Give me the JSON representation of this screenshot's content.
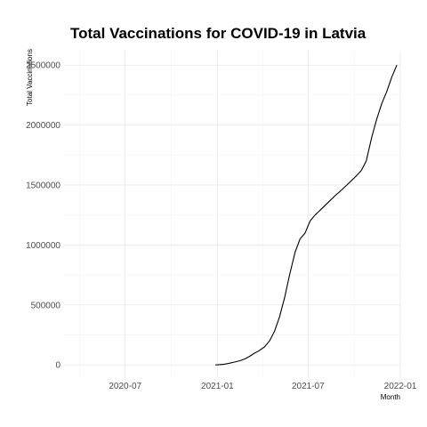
{
  "chart_data": {
    "type": "line",
    "title": "Total Vaccinations for COVID-19 in Latvia",
    "xlabel": "Month",
    "ylabel": "Total Vaccinations",
    "xlim": [
      "2020-03-01",
      "2022-01-01"
    ],
    "ylim": [
      -110000,
      2620000
    ],
    "x_ticks": [
      {
        "date": "2020-07-01",
        "label": "2020-07"
      },
      {
        "date": "2021-01-01",
        "label": "2021-01"
      },
      {
        "date": "2021-07-01",
        "label": "2021-07"
      },
      {
        "date": "2022-01-01",
        "label": "2022-01"
      }
    ],
    "x_minor_ticks": [
      "2020-04-01",
      "2020-10-01",
      "2021-04-01",
      "2021-10-01"
    ],
    "y_ticks": [
      0,
      500000,
      1000000,
      1500000,
      2000000,
      2500000
    ],
    "y_tick_labels": [
      "0",
      "500000",
      "1000000",
      "1500000",
      "2000000",
      "2500000"
    ],
    "y_minor_ticks": [
      250000,
      750000,
      1250000,
      1750000,
      2250000
    ],
    "grid": true,
    "colors": {
      "line": "#000000",
      "grid_major": "#ebebeb",
      "grid_minor": "#f2f2f2",
      "tick_text": "#4d4d4d"
    },
    "series": [
      {
        "x": [
          "2020-12-28",
          "2021-01-05",
          "2021-01-15",
          "2021-01-25",
          "2021-02-05",
          "2021-02-15",
          "2021-02-25",
          "2021-03-05",
          "2021-03-15",
          "2021-03-25",
          "2021-04-05",
          "2021-04-15",
          "2021-04-25",
          "2021-05-05",
          "2021-05-15",
          "2021-05-25",
          "2021-06-05",
          "2021-06-15",
          "2021-06-25",
          "2021-07-05",
          "2021-07-15",
          "2021-07-25",
          "2021-08-05",
          "2021-08-15",
          "2021-08-25",
          "2021-09-05",
          "2021-09-15",
          "2021-09-25",
          "2021-10-05",
          "2021-10-15",
          "2021-10-25",
          "2021-11-05",
          "2021-11-15",
          "2021-11-25",
          "2021-12-05",
          "2021-12-15",
          "2021-12-25"
        ],
        "y": [
          0,
          2000,
          6000,
          14000,
          24000,
          35000,
          50000,
          68000,
          95000,
          118000,
          150000,
          200000,
          280000,
          400000,
          560000,
          750000,
          940000,
          1050000,
          1100000,
          1200000,
          1250000,
          1290000,
          1335000,
          1375000,
          1415000,
          1455000,
          1495000,
          1535000,
          1575000,
          1620000,
          1700000,
          1900000,
          2050000,
          2180000,
          2280000,
          2400000,
          2500000
        ]
      }
    ]
  }
}
